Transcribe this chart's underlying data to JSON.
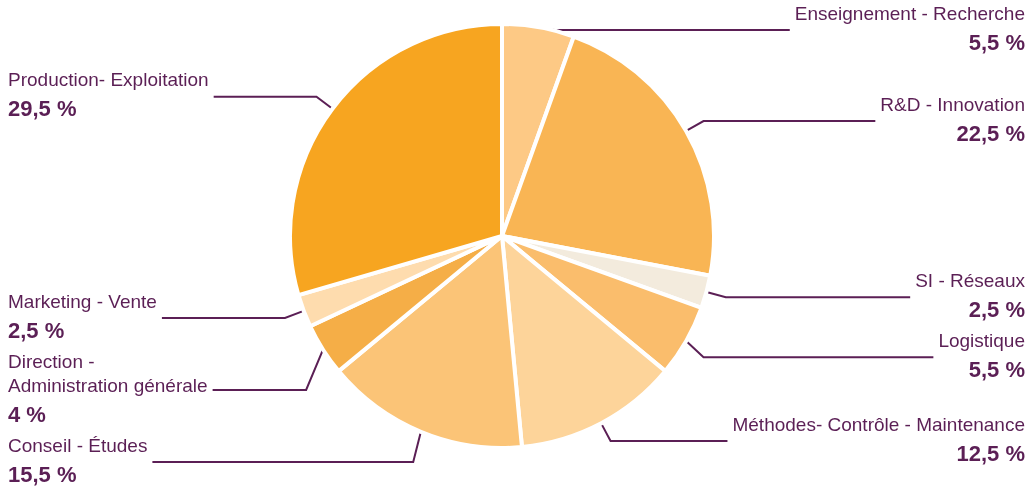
{
  "chart_data": {
    "type": "pie",
    "categories": [
      "Enseignement - Recherche",
      "R&D - Innovation",
      "SI - Réseaux",
      "Logistique",
      "Méthodes- Contrôle - Maintenance",
      "Conseil - Études",
      "Direction -\nAdministration générale",
      "Marketing - Vente",
      "Production- Exploitation"
    ],
    "values": [
      5.5,
      22.5,
      2.5,
      5.5,
      12.5,
      15.5,
      4,
      2.5,
      29.5
    ],
    "value_labels": [
      "5,5 %",
      "22,5 %",
      "2,5 %",
      "5,5 %",
      "12,5 %",
      "15,5 %",
      "4 %",
      "2,5 %",
      "29,5 %"
    ],
    "colors": [
      "#fdc985",
      "#f9b554",
      "#f3ebdd",
      "#fabd6c",
      "#fdd49a",
      "#fbc477",
      "#f5ae47",
      "#fedcae",
      "#f7a520"
    ],
    "legend": false
  }
}
